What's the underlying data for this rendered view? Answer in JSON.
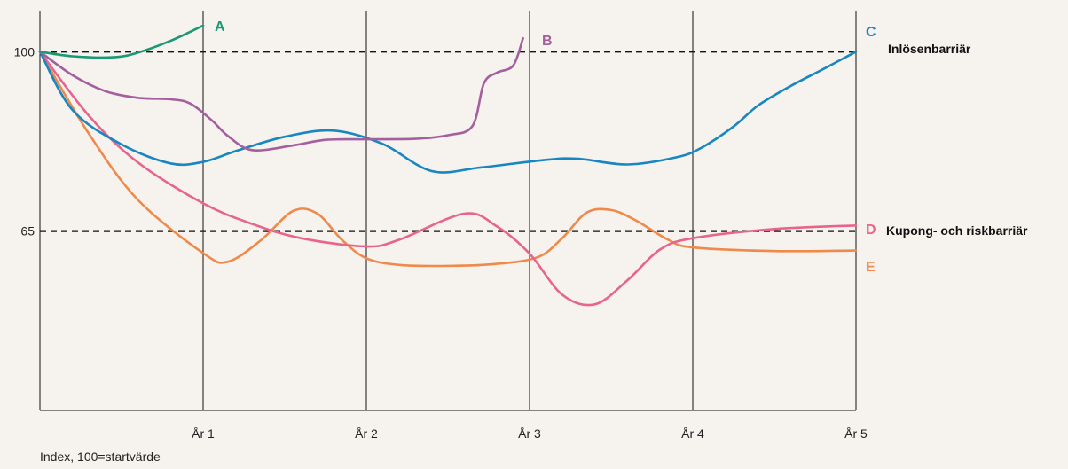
{
  "chart_data": {
    "type": "line",
    "title": "",
    "xlabel": "",
    "ylabel": "",
    "note": "Index, 100=startvärde",
    "categories": [
      "År 1",
      "År 2",
      "År 3",
      "År 4",
      "År 5"
    ],
    "xlim": [
      0,
      5
    ],
    "ylim": [
      30,
      108
    ],
    "y_ticks": [
      65,
      100
    ],
    "grid": "vertical lines at each year",
    "barriers": [
      {
        "value": 100,
        "label": "Inlösenbarriär"
      },
      {
        "value": 65,
        "label": "Kupong- och riskbarriär"
      }
    ],
    "series": [
      {
        "name": "A",
        "color": "#1a9a74",
        "x": [
          0,
          0.2,
          0.45,
          0.6,
          0.8,
          1.0
        ],
        "y": [
          100,
          99.1,
          98.9,
          99.8,
          102.1,
          105.1
        ]
      },
      {
        "name": "B",
        "color": "#a3609d",
        "x": [
          0,
          0.2,
          0.4,
          0.6,
          0.8,
          0.92,
          1.05,
          1.15,
          1.3,
          1.55,
          1.75,
          2.0,
          2.3,
          2.5,
          2.65,
          2.72,
          2.8,
          2.9,
          2.96
        ],
        "y": [
          100,
          95.4,
          92.3,
          91.0,
          90.7,
          89.9,
          86.7,
          83.6,
          80.8,
          81.7,
          82.8,
          82.9,
          83.0,
          83.7,
          85.5,
          93.8,
          95.9,
          97.3,
          102.6
        ]
      },
      {
        "name": "C",
        "color": "#1886c0",
        "x": [
          0,
          0.2,
          0.5,
          0.8,
          1.0,
          1.2,
          1.5,
          1.8,
          2.1,
          2.4,
          2.7,
          3.1,
          3.3,
          3.6,
          3.9,
          4.05,
          4.25,
          4.4,
          4.6,
          4.8,
          5.0
        ],
        "y": [
          100,
          88.6,
          81.9,
          78.2,
          78.5,
          80.6,
          83.4,
          84.6,
          82.0,
          76.7,
          77.4,
          78.9,
          79.1,
          78.0,
          79.4,
          81.2,
          85.4,
          89.5,
          93.3,
          96.6,
          100.0
        ]
      },
      {
        "name": "D",
        "color": "#e8648e",
        "x": [
          0,
          0.3,
          0.6,
          1.0,
          1.3,
          1.6,
          2.0,
          2.2,
          2.6,
          2.8,
          3.0,
          3.2,
          3.4,
          3.6,
          3.8,
          4.0,
          4.5,
          5.0
        ],
        "y": [
          100,
          87.5,
          78.4,
          70.4,
          66.4,
          63.6,
          62.0,
          63.3,
          68.4,
          65.9,
          60.6,
          52.6,
          50.7,
          55.4,
          61.4,
          63.6,
          65.4,
          66.1
        ]
      },
      {
        "name": "E",
        "color": "#ef8a4a",
        "x": [
          0,
          0.3,
          0.6,
          1.0,
          1.15,
          1.35,
          1.55,
          1.7,
          1.85,
          2.0,
          2.2,
          2.5,
          2.8,
          3.05,
          3.2,
          3.35,
          3.5,
          3.65,
          3.85,
          4.0,
          4.5,
          5.0
        ],
        "y": [
          100,
          84.0,
          71.1,
          60.7,
          59.0,
          63.1,
          68.9,
          68.4,
          63.3,
          59.7,
          58.4,
          58.2,
          58.6,
          59.9,
          63.6,
          68.6,
          69.1,
          67.1,
          63.3,
          61.8,
          61.1,
          61.2
        ]
      }
    ]
  }
}
